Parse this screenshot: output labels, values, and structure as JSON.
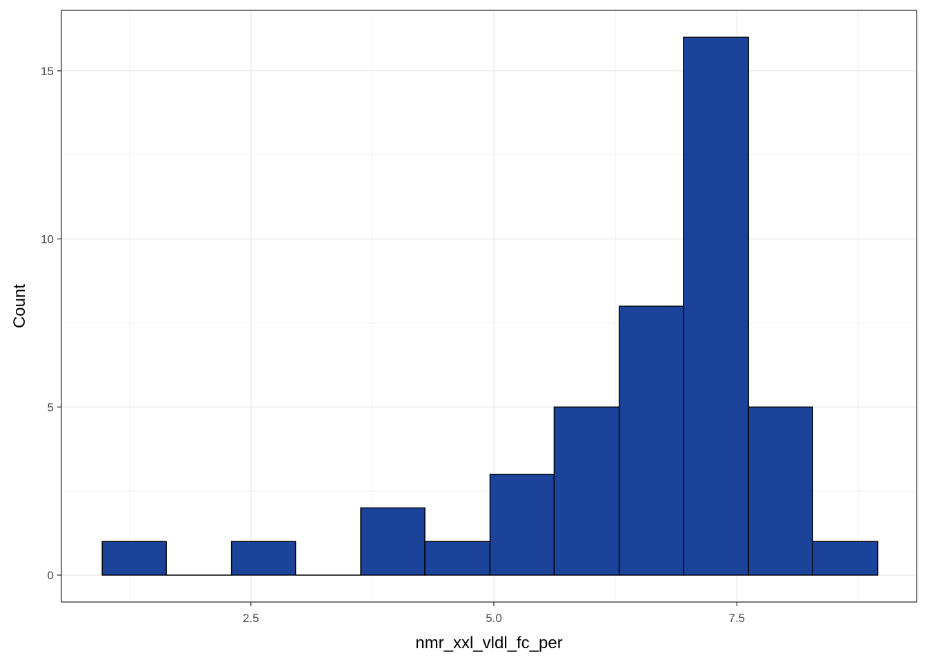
{
  "chart_data": {
    "type": "bar",
    "subtype": "histogram",
    "title": "",
    "xlabel": "nmr_xxl_vldl_fc_per",
    "ylabel": "Count",
    "xlim": [
      0.55,
      9.35
    ],
    "ylim": [
      -0.8,
      16.8
    ],
    "x_ticks": [
      2.5,
      5.0,
      7.5
    ],
    "x_tick_labels": [
      "2.5",
      "5.0",
      "7.5"
    ],
    "y_ticks": [
      0,
      5,
      10,
      15
    ],
    "y_tick_labels": [
      "0",
      "5",
      "10",
      "15"
    ],
    "bins": [
      {
        "x0": 0.97,
        "x1": 1.63,
        "count": 1
      },
      {
        "x0": 1.63,
        "x1": 2.3,
        "count": 0
      },
      {
        "x0": 2.3,
        "x1": 2.96,
        "count": 1
      },
      {
        "x0": 2.96,
        "x1": 3.63,
        "count": 0
      },
      {
        "x0": 3.63,
        "x1": 4.29,
        "count": 2
      },
      {
        "x0": 4.29,
        "x1": 4.96,
        "count": 1
      },
      {
        "x0": 4.96,
        "x1": 5.62,
        "count": 3
      },
      {
        "x0": 5.62,
        "x1": 6.29,
        "count": 5
      },
      {
        "x0": 6.29,
        "x1": 6.95,
        "count": 8
      },
      {
        "x0": 6.95,
        "x1": 7.62,
        "count": 16
      },
      {
        "x0": 7.62,
        "x1": 8.28,
        "count": 5
      },
      {
        "x0": 8.28,
        "x1": 8.95,
        "count": 1
      }
    ],
    "bar_fill": "#1a4399",
    "bar_stroke": "#000000",
    "grid": true,
    "grid_color": "#ebebeb",
    "panel_border_color": "#333333",
    "background": "#ffffff"
  }
}
